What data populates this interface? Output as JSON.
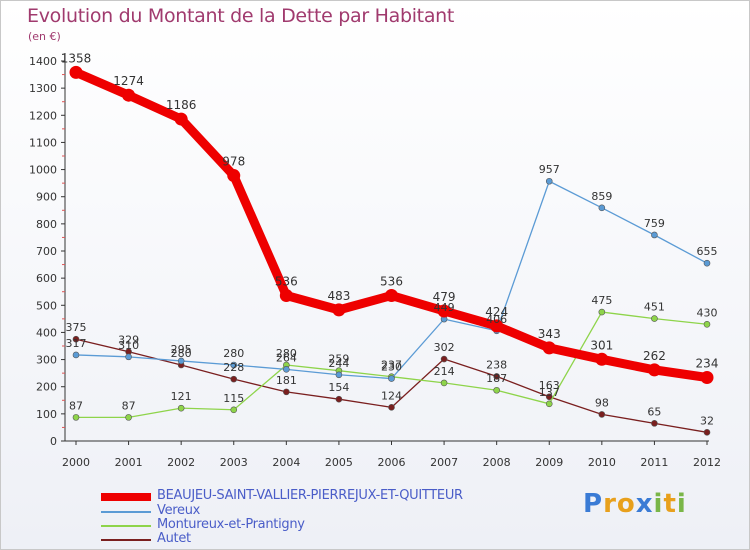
{
  "title": "Evolution du Montant de la Dette par Habitant",
  "unit": "(en €)",
  "logo": {
    "text": "Proxiti"
  },
  "chart_data": {
    "type": "line",
    "x": [
      "2000",
      "2001",
      "2002",
      "2003",
      "2004",
      "2005",
      "2006",
      "2007",
      "2008",
      "2009",
      "2010",
      "2011",
      "2012"
    ],
    "ylim": [
      0,
      1400
    ],
    "yticks": [
      0,
      100,
      200,
      300,
      400,
      500,
      600,
      700,
      800,
      900,
      1000,
      1100,
      1200,
      1300,
      1400
    ],
    "grid": false,
    "legend_position": "bottom-left",
    "series": [
      {
        "name": "BEAUJEU-SAINT-VALLIER-PIERREJUX-ET-QUITTEUR",
        "color": "#ee0000",
        "values": [
          1358,
          1274,
          1186,
          978,
          536,
          483,
          536,
          479,
          424,
          343,
          301,
          262,
          234
        ]
      },
      {
        "name": "Vereux",
        "color": "#5b9bd5",
        "values": [
          317,
          310,
          295,
          280,
          264,
          244,
          230,
          449,
          406,
          957,
          859,
          759,
          655
        ]
      },
      {
        "name": "Montureux-et-Prantigny",
        "color": "#8ed44a",
        "values": [
          87,
          87,
          121,
          115,
          280,
          259,
          237,
          214,
          187,
          137,
          475,
          451,
          430
        ]
      },
      {
        "name": "Autet",
        "color": "#7a1f1f",
        "values": [
          375,
          329,
          280,
          228,
          181,
          154,
          124,
          302,
          238,
          163,
          98,
          65,
          32
        ]
      }
    ]
  }
}
